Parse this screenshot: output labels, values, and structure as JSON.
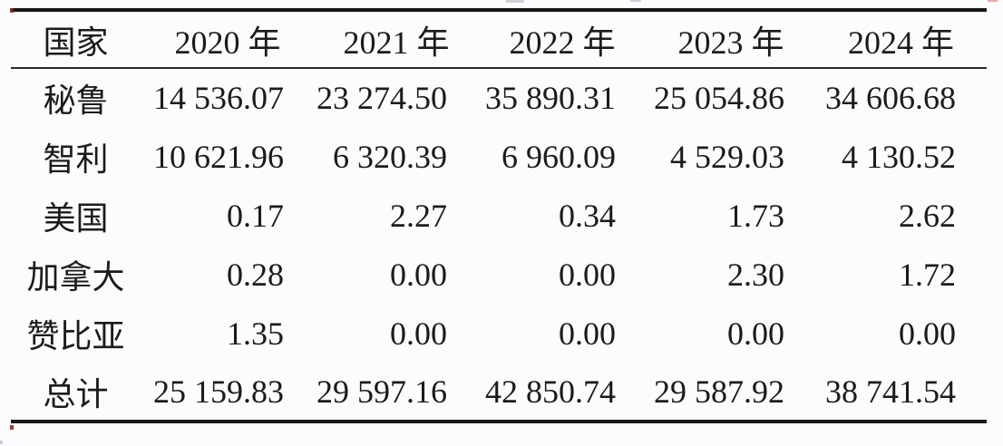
{
  "table": {
    "columns": [
      "国家",
      "2020 年",
      "2021 年",
      "2022 年",
      "2023 年",
      "2024 年"
    ],
    "rows": [
      {
        "country": "秘鲁",
        "values": [
          "14 536.07",
          "23 274.50",
          "35 890.31",
          "25 054.86",
          "34 606.68"
        ]
      },
      {
        "country": "智利",
        "values": [
          "10 621.96",
          "6 320.39",
          "6 960.09",
          "4 529.03",
          "4 130.52"
        ]
      },
      {
        "country": "美国",
        "values": [
          "0.17",
          "2.27",
          "0.34",
          "1.73",
          "2.62"
        ]
      },
      {
        "country": "加拿大",
        "values": [
          "0.28",
          "0.00",
          "0.00",
          "2.30",
          "1.72"
        ]
      },
      {
        "country": "赞比亚",
        "values": [
          "1.35",
          "0.00",
          "0.00",
          "0.00",
          "0.00"
        ]
      },
      {
        "country": "总计",
        "values": [
          "25 159.83",
          "29 597.16",
          "42 850.74",
          "29 587.92",
          "38 741.54"
        ]
      }
    ]
  },
  "chart_data": {
    "type": "table",
    "row_header_label": "国家",
    "categories": [
      "2020 年",
      "2021 年",
      "2022 年",
      "2023 年",
      "2024 年"
    ],
    "series": [
      {
        "name": "秘鲁",
        "values": [
          14536.07,
          23274.5,
          35890.31,
          25054.86,
          34606.68
        ]
      },
      {
        "name": "智利",
        "values": [
          10621.96,
          6320.39,
          6960.09,
          4529.03,
          4130.52
        ]
      },
      {
        "name": "美国",
        "values": [
          0.17,
          2.27,
          0.34,
          1.73,
          2.62
        ]
      },
      {
        "name": "加拿大",
        "values": [
          0.28,
          0.0,
          0.0,
          2.3,
          1.72
        ]
      },
      {
        "name": "赞比亚",
        "values": [
          1.35,
          0.0,
          0.0,
          0.0,
          0.0
        ]
      },
      {
        "name": "总计",
        "values": [
          25159.83,
          29597.16,
          42850.74,
          29587.92,
          38741.54
        ]
      }
    ],
    "layout": {
      "style": "three-line booktabs table",
      "numbers_alignment": "right",
      "thousands_separator": "thin space"
    }
  },
  "colors": {
    "bg": "#fbfcfd",
    "text": "#1b1b1b",
    "rule": "#161616",
    "thin-rule": "#2b2b2b",
    "accent-red": "#7c2420",
    "artifact-gray": "#b9bec6"
  }
}
